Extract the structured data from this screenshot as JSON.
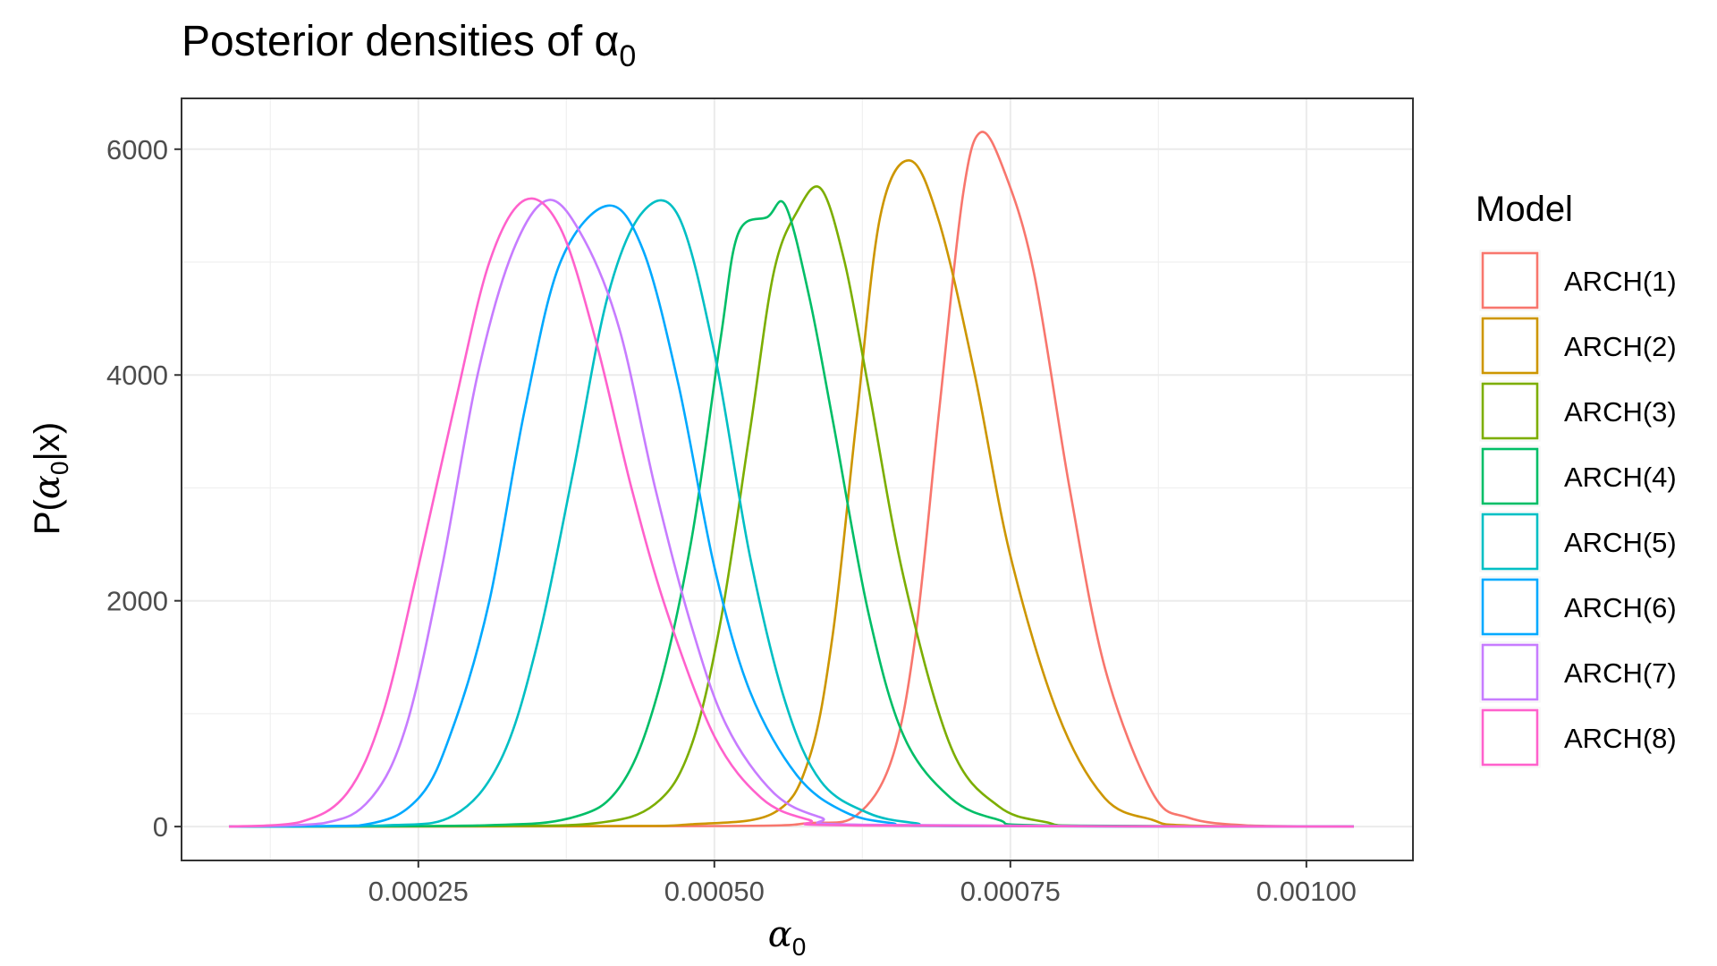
{
  "chart_data": {
    "type": "line",
    "title": "Posterior densities of α",
    "title_subscript": "0",
    "xlabel": "α",
    "xlabel_subscript": "0",
    "ylabel_parts": {
      "prefix": "P(",
      "symbol": "α",
      "subscript": "0",
      "suffix": "|x)"
    },
    "xlim": [
      5e-05,
      0.00109
    ],
    "ylim": [
      -300,
      6450
    ],
    "x_ticks": [
      0.00025,
      0.0005,
      0.00075,
      0.001
    ],
    "x_tick_labels": [
      "0.00025",
      "0.00050",
      "0.00075",
      "0.00100"
    ],
    "y_ticks": [
      0,
      2000,
      4000,
      6000
    ],
    "y_tick_labels": [
      "0",
      "2000",
      "4000",
      "6000"
    ],
    "grid": true,
    "legend": {
      "title": "Model",
      "placement": "right"
    },
    "series": [
      {
        "name": "ARCH(1)",
        "color": "#F8766D",
        "points": [
          [
            9e-05,
            0
          ],
          [
            0.0005,
            5
          ],
          [
            0.00058,
            30
          ],
          [
            0.00062,
            100
          ],
          [
            0.00065,
            600
          ],
          [
            0.00067,
            1700
          ],
          [
            0.00069,
            3700
          ],
          [
            0.00071,
            5600
          ],
          [
            0.000725,
            6150
          ],
          [
            0.000745,
            5800
          ],
          [
            0.00077,
            4900
          ],
          [
            0.0008,
            3000
          ],
          [
            0.00083,
            1400
          ],
          [
            0.00087,
            300
          ],
          [
            0.0009,
            80
          ],
          [
            0.00095,
            10
          ],
          [
            0.00104,
            0
          ]
        ]
      },
      {
        "name": "ARCH(2)",
        "color": "#CD9600",
        "points": [
          [
            9e-05,
            0
          ],
          [
            0.0004,
            5
          ],
          [
            0.00048,
            20
          ],
          [
            0.00055,
            120
          ],
          [
            0.00058,
            600
          ],
          [
            0.0006,
            1700
          ],
          [
            0.00062,
            3600
          ],
          [
            0.00064,
            5400
          ],
          [
            0.000665,
            5900
          ],
          [
            0.00069,
            5350
          ],
          [
            0.00072,
            4000
          ],
          [
            0.00075,
            2400
          ],
          [
            0.00079,
            1000
          ],
          [
            0.00083,
            250
          ],
          [
            0.00087,
            60
          ],
          [
            0.0009,
            10
          ],
          [
            0.00104,
            0
          ]
        ]
      },
      {
        "name": "ARCH(3)",
        "color": "#7CAE00",
        "points": [
          [
            9e-05,
            0
          ],
          [
            0.0003,
            5
          ],
          [
            0.0004,
            30
          ],
          [
            0.00045,
            200
          ],
          [
            0.00048,
            700
          ],
          [
            0.000505,
            1800
          ],
          [
            0.00053,
            3500
          ],
          [
            0.00055,
            4900
          ],
          [
            0.00057,
            5450
          ],
          [
            0.00059,
            5650
          ],
          [
            0.00061,
            5000
          ],
          [
            0.00063,
            3900
          ],
          [
            0.00066,
            2200
          ],
          [
            0.0007,
            700
          ],
          [
            0.00074,
            180
          ],
          [
            0.00078,
            40
          ],
          [
            0.00082,
            5
          ],
          [
            0.00104,
            0
          ]
        ]
      },
      {
        "name": "ARCH(4)",
        "color": "#00BE67",
        "points": [
          [
            9e-05,
            0
          ],
          [
            0.0003,
            10
          ],
          [
            0.00038,
            80
          ],
          [
            0.00042,
            350
          ],
          [
            0.00045,
            1100
          ],
          [
            0.00048,
            2500
          ],
          [
            0.000505,
            4300
          ],
          [
            0.00052,
            5250
          ],
          [
            0.000545,
            5400
          ],
          [
            0.00056,
            5500
          ],
          [
            0.00058,
            4700
          ],
          [
            0.0006,
            3600
          ],
          [
            0.00063,
            1900
          ],
          [
            0.00066,
            800
          ],
          [
            0.0007,
            250
          ],
          [
            0.00074,
            60
          ],
          [
            0.00078,
            10
          ],
          [
            0.00104,
            0
          ]
        ]
      },
      {
        "name": "ARCH(5)",
        "color": "#00BFC4",
        "points": [
          [
            9e-05,
            0
          ],
          [
            0.00022,
            10
          ],
          [
            0.00028,
            100
          ],
          [
            0.00032,
            600
          ],
          [
            0.00035,
            1600
          ],
          [
            0.00038,
            3100
          ],
          [
            0.00041,
            4700
          ],
          [
            0.00044,
            5450
          ],
          [
            0.00047,
            5400
          ],
          [
            0.0005,
            4200
          ],
          [
            0.00053,
            2400
          ],
          [
            0.00056,
            1100
          ],
          [
            0.00059,
            400
          ],
          [
            0.00063,
            120
          ],
          [
            0.00067,
            30
          ],
          [
            0.00071,
            5
          ],
          [
            0.00104,
            0
          ]
        ]
      },
      {
        "name": "ARCH(6)",
        "color": "#00A9FF",
        "points": [
          [
            9e-05,
            0
          ],
          [
            0.0002,
            10
          ],
          [
            0.00025,
            250
          ],
          [
            0.00028,
            900
          ],
          [
            0.00031,
            2000
          ],
          [
            0.00034,
            3700
          ],
          [
            0.00037,
            5000
          ],
          [
            0.00041,
            5500
          ],
          [
            0.00044,
            5100
          ],
          [
            0.00047,
            3900
          ],
          [
            0.0005,
            2300
          ],
          [
            0.00053,
            1200
          ],
          [
            0.00057,
            450
          ],
          [
            0.00061,
            130
          ],
          [
            0.00065,
            30
          ],
          [
            0.00069,
            5
          ],
          [
            0.00104,
            0
          ]
        ]
      },
      {
        "name": "ARCH(7)",
        "color": "#C77CFF",
        "points": [
          [
            9e-05,
            0
          ],
          [
            0.00017,
            30
          ],
          [
            0.00021,
            250
          ],
          [
            0.00024,
            900
          ],
          [
            0.00027,
            2300
          ],
          [
            0.0003,
            4000
          ],
          [
            0.00033,
            5100
          ],
          [
            0.00036,
            5550
          ],
          [
            0.00039,
            5200
          ],
          [
            0.00042,
            4400
          ],
          [
            0.00045,
            3000
          ],
          [
            0.00048,
            1800
          ],
          [
            0.00051,
            900
          ],
          [
            0.00055,
            300
          ],
          [
            0.00059,
            80
          ],
          [
            0.00063,
            15
          ],
          [
            0.00104,
            0
          ]
        ]
      },
      {
        "name": "ARCH(8)",
        "color": "#FF61CC",
        "points": [
          [
            9e-05,
            0
          ],
          [
            0.00015,
            40
          ],
          [
            0.00019,
            300
          ],
          [
            0.00022,
            1000
          ],
          [
            0.00025,
            2300
          ],
          [
            0.00028,
            3700
          ],
          [
            0.00031,
            5000
          ],
          [
            0.00034,
            5550
          ],
          [
            0.00037,
            5300
          ],
          [
            0.0004,
            4300
          ],
          [
            0.00043,
            3000
          ],
          [
            0.00046,
            1900
          ],
          [
            0.0005,
            800
          ],
          [
            0.00054,
            250
          ],
          [
            0.00058,
            60
          ],
          [
            0.00062,
            10
          ],
          [
            0.00104,
            0
          ]
        ]
      }
    ]
  }
}
